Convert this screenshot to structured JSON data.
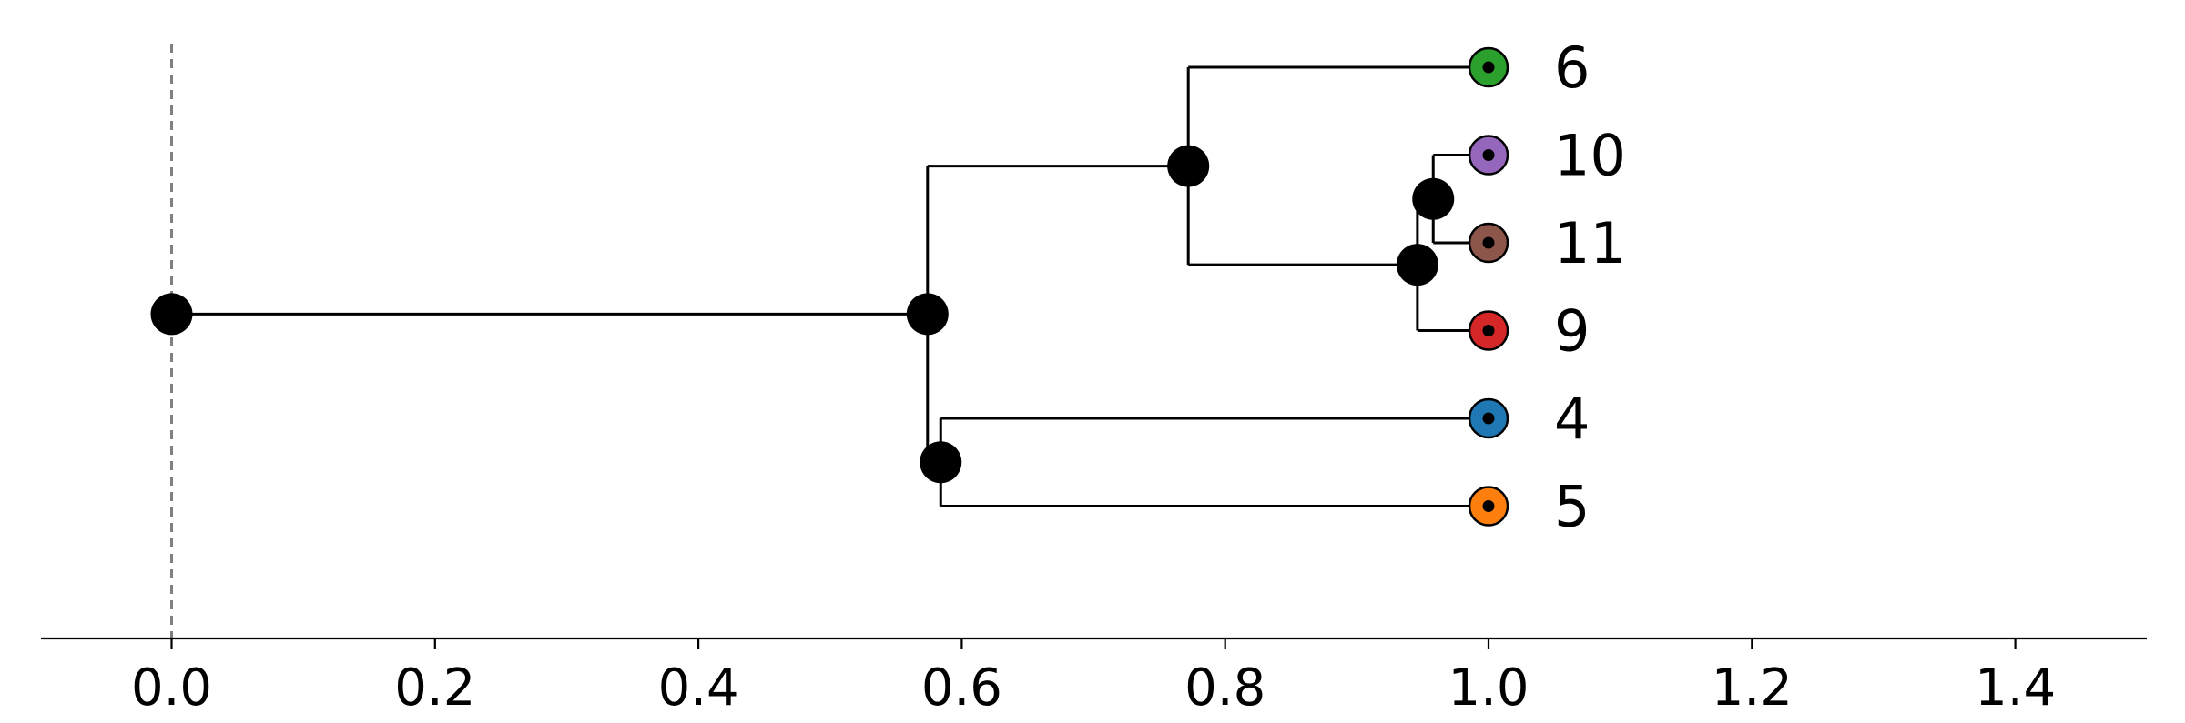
{
  "chart_data": {
    "type": "tree",
    "x_ticks": [
      0.0,
      0.2,
      0.4,
      0.6,
      0.8,
      1.0,
      1.2,
      1.4
    ],
    "x_tick_labels": [
      "0.0",
      "0.2",
      "0.4",
      "0.6",
      "0.8",
      "1.0",
      "1.2",
      "1.4"
    ],
    "xlim": [
      -0.1,
      1.5
    ],
    "xlabel": "",
    "ylabel": "",
    "title": "",
    "reference_line_x": 0.0,
    "leaves": [
      {
        "label": "6",
        "x": 1.0,
        "row": 0,
        "color": "#2ca02c"
      },
      {
        "label": "10",
        "x": 1.0,
        "row": 1,
        "color": "#9467bd"
      },
      {
        "label": "11",
        "x": 1.0,
        "row": 2,
        "color": "#8c564b"
      },
      {
        "label": "9",
        "x": 1.0,
        "row": 3,
        "color": "#d62728"
      },
      {
        "label": "4",
        "x": 1.0,
        "row": 4,
        "color": "#1f77b4"
      },
      {
        "label": "5",
        "x": 1.0,
        "row": 5,
        "color": "#ff7f0e"
      }
    ],
    "internal_nodes": [
      {
        "id": "root",
        "x": 0.0,
        "children": [
          "A"
        ]
      },
      {
        "id": "A",
        "x": 0.574,
        "children": [
          "B",
          "C"
        ]
      },
      {
        "id": "B",
        "x": 0.772,
        "children": [
          "6",
          "D"
        ]
      },
      {
        "id": "D",
        "x": 0.946,
        "children": [
          "E",
          "9"
        ]
      },
      {
        "id": "E",
        "x": 0.958,
        "children": [
          "10",
          "11"
        ]
      },
      {
        "id": "C",
        "x": 0.584,
        "children": [
          "4",
          "5"
        ]
      }
    ],
    "grid": false,
    "legend": "none"
  }
}
